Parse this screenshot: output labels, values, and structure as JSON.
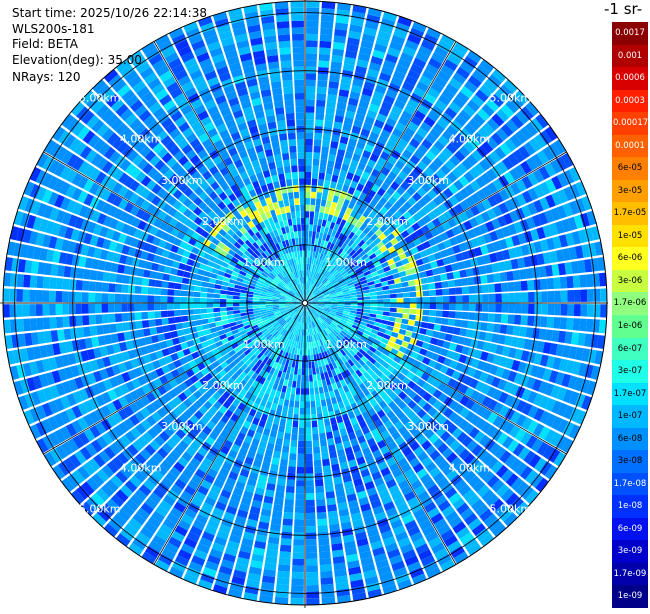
{
  "info": {
    "start_time": "Start time: 2025/10/26 22:14:38",
    "instrument": "WLS200s-181",
    "field": "Field: BETA",
    "elevation": "Elevation(deg): 35.00",
    "nrays": "NRays: 120"
  },
  "colorbar": {
    "title": "-1 sr-",
    "labels": [
      "0.0017",
      "0.001",
      "0.0006",
      "0.0003",
      "0.00017",
      "0.0001",
      "6e-05",
      "3e-05",
      "1.7e-05",
      "1e-05",
      "6e-06",
      "3e-06",
      "1.7e-06",
      "1e-06",
      "6e-07",
      "3e-07",
      "1.7e-07",
      "1e-07",
      "6e-08",
      "3e-08",
      "1.7e-08",
      "1e-08",
      "6e-09",
      "3e-09",
      "1.7e-09",
      "1e-09"
    ],
    "colors": [
      "#8b0000",
      "#b00000",
      "#d80000",
      "#ff2000",
      "#ff4000",
      "#ff6000",
      "#ff8000",
      "#ffa000",
      "#ffbf00",
      "#ffe000",
      "#ffff20",
      "#c8ff40",
      "#90ff80",
      "#60ff90",
      "#40ffc0",
      "#20ffe8",
      "#00e0ff",
      "#00b8ff",
      "#0090ff",
      "#0070ff",
      "#0050ff",
      "#0030ff",
      "#0010ee",
      "#0000cc",
      "#0000aa",
      "#000088"
    ]
  },
  "chart_data": {
    "type": "heatmap",
    "projection": "polar PPI",
    "field": "BETA",
    "nrays": 120,
    "range_rings_km": [
      1,
      2,
      3,
      4,
      5
    ],
    "ring_labels": [
      "1.00km",
      "2.00km",
      "3.00km",
      "4.00km",
      "5.00km"
    ],
    "max_range_km": 5.2,
    "spoke_angles_deg": [
      0,
      30,
      60,
      90,
      120,
      150,
      180,
      210,
      240,
      270,
      300,
      330
    ],
    "features": {
      "background_range": [
        "3e-08",
        "1e-07"
      ],
      "near_field_ring_km": [
        0.9,
        1.6
      ],
      "near_field_values": [
        "1.7e-07",
        "1e-06"
      ],
      "enhanced_arc_km": [
        1.5,
        2.0
      ],
      "enhanced_arc_values": [
        "6e-06",
        "3e-06"
      ],
      "low_values": [
        "1e-08",
        "3e-09"
      ]
    }
  }
}
